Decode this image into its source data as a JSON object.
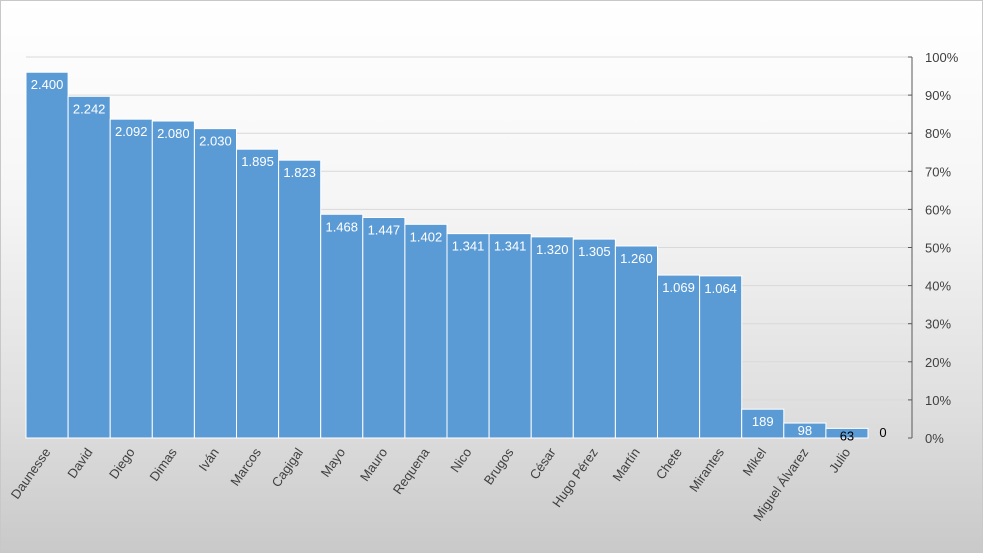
{
  "chart_data": {
    "type": "bar",
    "title": "",
    "xlabel": "",
    "ylabel": "",
    "categories": [
      "Daunesse",
      "David",
      "Diego",
      "Dimas",
      "Iván",
      "Marcos",
      "Cagigal",
      "Mayo",
      "Mauro",
      "Requena",
      "Nico",
      "Brugos",
      "César",
      "Hugo Pérez",
      "Martín",
      "Chete",
      "Mirantes",
      "Mikel",
      "Miguel Álvarez",
      "Julio"
    ],
    "values": [
      2400,
      2242,
      2092,
      2080,
      2030,
      1895,
      1823,
      1468,
      1447,
      1402,
      1341,
      1341,
      1320,
      1305,
      1260,
      1069,
      1064,
      189,
      98,
      63
    ],
    "value_labels": [
      "2.400",
      "2.242",
      "2.092",
      "2.080",
      "2.030",
      "1.895",
      "1.823",
      "1.468",
      "1.447",
      "1.402",
      "1.341",
      "1.341",
      "1.320",
      "1.305",
      "1.260",
      "1.069",
      "1.064",
      "189",
      "98",
      "63"
    ],
    "extra_label": "0",
    "ylim": [
      0,
      2500
    ],
    "secondary_axis": {
      "position": "right",
      "range": [
        0,
        1
      ],
      "tick_labels": [
        "0%",
        "10%",
        "20%",
        "30%",
        "40%",
        "50%",
        "60%",
        "70%",
        "80%",
        "90%",
        "100%"
      ]
    },
    "grid": true,
    "legend": "none",
    "colors": {
      "bar": "#5b9bd5",
      "label_inside": "#ffffff",
      "label_outside": "#000000",
      "grid": "#d9d9d9"
    }
  }
}
